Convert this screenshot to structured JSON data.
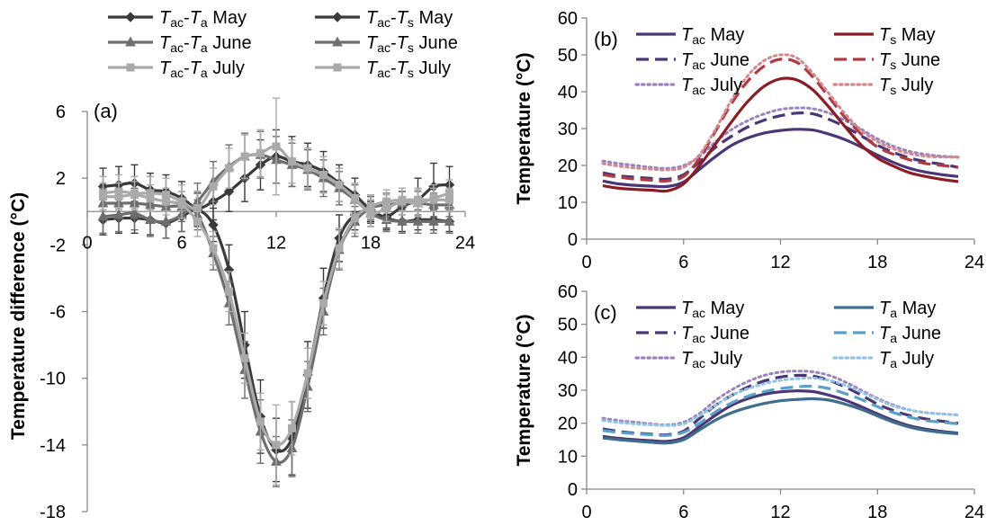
{
  "colors": {
    "may_gray": "#3a3a3a",
    "june_gray": "#6e6e6e",
    "july_gray": "#aaaaaa",
    "tac": "#4b3675",
    "ts": "#8b1c24",
    "ta": "#3f6d8c"
  },
  "chart_data": [
    {
      "id": "a",
      "type": "line",
      "panel_label": "(a)",
      "ylabel": "Temperature difference (°C)",
      "xlabel": "",
      "xlim": [
        0,
        24
      ],
      "ylim": [
        -18,
        6
      ],
      "x_ticks": [
        "0",
        "6",
        "12",
        "18",
        "24"
      ],
      "y_ticks": [
        "-18",
        "-14",
        "-10",
        "-6",
        "-2",
        "2",
        "6"
      ],
      "x": [
        1,
        2,
        3,
        4,
        5,
        6,
        7,
        8,
        9,
        10,
        11,
        12,
        13,
        14,
        15,
        16,
        17,
        18,
        19,
        20,
        21,
        22,
        23
      ],
      "legend": [
        {
          "a": "T",
          "as": "ac",
          "b": "T",
          "bs": "a",
          "month": "May"
        },
        {
          "a": "T",
          "as": "ac",
          "b": "T",
          "bs": "s",
          "month": "May"
        },
        {
          "a": "T",
          "as": "ac",
          "b": "T",
          "bs": "a",
          "month": "June"
        },
        {
          "a": "T",
          "as": "ac",
          "b": "T",
          "bs": "s",
          "month": "June"
        },
        {
          "a": "T",
          "as": "ac",
          "b": "T",
          "bs": "a",
          "month": "July"
        },
        {
          "a": "T",
          "as": "ac",
          "b": "T",
          "bs": "s",
          "month": "July"
        }
      ],
      "series": [
        {
          "name": "Tac-Ta May",
          "marker": "diamond",
          "color": "#3a3a3a",
          "values": [
            1.5,
            1.6,
            1.7,
            1.3,
            1.2,
            0.8,
            0.2,
            0.6,
            1.2,
            2.0,
            2.8,
            3.3,
            3.0,
            2.8,
            2.4,
            1.7,
            1.0,
            0.1,
            -0.3,
            0.3,
            0.7,
            1.5,
            1.6
          ],
          "err": [
            1.1,
            1.1,
            1.1,
            1.0,
            1.0,
            1.0,
            1.0,
            1.1,
            1.2,
            1.4,
            1.5,
            1.6,
            1.5,
            1.3,
            1.2,
            1.1,
            1.0,
            0.8,
            0.8,
            0.9,
            1.3,
            1.4,
            1.1
          ]
        },
        {
          "name": "Tac-Ts May",
          "marker": "diamond",
          "color": "#3a3a3a",
          "values": [
            -0.5,
            -0.4,
            -0.4,
            -0.5,
            -0.7,
            -0.3,
            0.1,
            -0.8,
            -3.5,
            -8.0,
            -12.3,
            -14.3,
            -13.6,
            -9.8,
            -5.2,
            -1.6,
            -0.2,
            0.0,
            -0.4,
            -0.6,
            -0.5,
            -0.5,
            -0.6
          ],
          "err": [
            0.9,
            0.9,
            0.9,
            0.9,
            0.9,
            0.9,
            1.0,
            1.0,
            1.5,
            2.0,
            2.2,
            1.9,
            2.2,
            2.0,
            1.8,
            1.4,
            0.9,
            0.6,
            0.6,
            0.6,
            0.6,
            0.6,
            0.6
          ]
        },
        {
          "name": "Tac-Ta June",
          "marker": "triangle",
          "color": "#6e6e6e",
          "values": [
            -0.3,
            -0.2,
            -0.1,
            -0.5,
            -0.6,
            -0.2,
            0.6,
            1.8,
            2.7,
            3.3,
            3.4,
            3.1,
            2.8,
            2.5,
            2.0,
            1.4,
            0.7,
            -0.1,
            -0.5,
            -0.6,
            -0.6,
            -0.6,
            -0.6
          ],
          "err": [
            1.0,
            1.0,
            1.0,
            1.0,
            1.0,
            1.0,
            1.1,
            1.2,
            1.3,
            1.4,
            1.4,
            1.4,
            1.3,
            1.2,
            1.1,
            1.0,
            0.9,
            0.8,
            0.7,
            0.7,
            0.7,
            0.7,
            0.7
          ]
        },
        {
          "name": "Tac-Ts June",
          "marker": "triangle",
          "color": "#6e6e6e",
          "values": [
            0.5,
            0.5,
            0.5,
            0.4,
            0.3,
            0.3,
            -0.2,
            -2.5,
            -5.5,
            -9.5,
            -13.2,
            -15.0,
            -14.2,
            -10.5,
            -6.0,
            -2.3,
            -0.6,
            0.2,
            0.4,
            0.5,
            0.5,
            0.4,
            0.4
          ],
          "err": [
            0.9,
            0.9,
            0.9,
            0.9,
            0.9,
            0.9,
            0.9,
            1.0,
            1.3,
            1.7,
            1.9,
            1.5,
            1.7,
            1.5,
            1.4,
            1.2,
            0.9,
            0.7,
            0.7,
            0.7,
            0.7,
            0.7,
            0.7
          ]
        },
        {
          "name": "Tac-Ta July",
          "marker": "square",
          "color": "#aaaaaa",
          "values": [
            1.1,
            1.2,
            1.1,
            1.1,
            1.0,
            0.6,
            0.2,
            1.5,
            2.6,
            3.3,
            3.5,
            3.9,
            3.0,
            2.6,
            2.2,
            1.6,
            0.8,
            -0.1,
            0.2,
            0.6,
            0.5,
            0.8,
            1.1
          ],
          "err": [
            1.0,
            1.0,
            1.0,
            1.0,
            1.0,
            1.0,
            1.0,
            1.1,
            1.2,
            1.3,
            1.4,
            2.9,
            1.3,
            1.2,
            1.1,
            1.0,
            0.9,
            0.8,
            0.8,
            0.8,
            0.8,
            0.8,
            0.8
          ]
        },
        {
          "name": "Tac-Ts July",
          "marker": "square",
          "color": "#aaaaaa",
          "values": [
            0.9,
            0.9,
            1.0,
            0.8,
            0.6,
            0.4,
            -0.6,
            -2.2,
            -4.8,
            -8.8,
            -12.6,
            -14.0,
            -13.0,
            -9.7,
            -5.5,
            -2.2,
            -0.4,
            0.3,
            0.6,
            0.7,
            0.7,
            0.7,
            0.7
          ],
          "err": [
            0.8,
            0.8,
            0.8,
            0.8,
            0.8,
            0.8,
            0.9,
            1.0,
            1.2,
            1.5,
            1.7,
            2.4,
            1.6,
            1.5,
            1.3,
            1.2,
            0.9,
            0.7,
            0.7,
            0.7,
            0.7,
            0.7,
            0.7
          ]
        }
      ]
    },
    {
      "id": "b",
      "type": "line",
      "panel_label": "(b)",
      "ylabel": "Temperature (°C)",
      "xlabel": "",
      "xlim": [
        0,
        24
      ],
      "ylim": [
        0,
        60
      ],
      "x_ticks": [
        "0",
        "6",
        "12",
        "18",
        "24"
      ],
      "y_ticks": [
        "0",
        "10",
        "20",
        "30",
        "40",
        "50",
        "60"
      ],
      "x": [
        1,
        2,
        3,
        4,
        5,
        6,
        7,
        8,
        9,
        10,
        11,
        12,
        13,
        14,
        15,
        16,
        17,
        18,
        19,
        20,
        21,
        22,
        23
      ],
      "series": [
        {
          "label_main": "T",
          "label_sub": "ac",
          "label_month": "May",
          "dash": "solid",
          "color": "#4b3675",
          "values": [
            15.8,
            15.0,
            14.6,
            14.4,
            14.3,
            15.5,
            19.0,
            22.5,
            25.5,
            27.5,
            28.8,
            29.5,
            29.8,
            29.6,
            28.5,
            27.0,
            25.0,
            22.8,
            20.8,
            19.2,
            18.2,
            17.5,
            17.0
          ]
        },
        {
          "label_main": "T",
          "label_sub": "ac",
          "label_month": "June",
          "dash": "dash",
          "color": "#4b3675",
          "values": [
            18.0,
            17.2,
            16.8,
            16.5,
            16.3,
            17.5,
            21.0,
            25.0,
            28.0,
            30.5,
            32.3,
            33.5,
            34.2,
            34.0,
            32.5,
            30.5,
            28.0,
            25.5,
            23.5,
            22.0,
            21.0,
            20.3,
            19.5
          ]
        },
        {
          "label_main": "T",
          "label_sub": "ac",
          "label_month": "July",
          "dash": "dot",
          "color": "#9b83bf",
          "values": [
            21.2,
            20.5,
            20.0,
            19.5,
            19.2,
            20.0,
            22.5,
            26.5,
            29.8,
            32.2,
            34.0,
            35.2,
            35.6,
            35.4,
            34.2,
            32.2,
            29.8,
            27.2,
            25.2,
            23.8,
            23.0,
            22.5,
            22.3
          ]
        },
        {
          "label_main": "T",
          "label_sub": "s",
          "label_month": "May",
          "dash": "solid",
          "color": "#8b1c24",
          "values": [
            14.5,
            13.8,
            13.5,
            13.3,
            13.1,
            15.0,
            20.0,
            26.0,
            32.0,
            37.5,
            41.5,
            43.5,
            43.2,
            40.5,
            35.8,
            30.5,
            25.5,
            22.0,
            19.8,
            18.0,
            17.0,
            16.2,
            15.6
          ]
        },
        {
          "label_main": "T",
          "label_sub": "s",
          "label_month": "June",
          "dash": "dash",
          "color": "#b03a42",
          "values": [
            17.5,
            16.8,
            16.3,
            16.0,
            15.8,
            17.0,
            22.0,
            29.5,
            37.0,
            43.0,
            47.0,
            48.8,
            48.0,
            44.0,
            38.5,
            33.0,
            28.5,
            25.0,
            23.0,
            21.5,
            20.5,
            20.0,
            19.5
          ]
        },
        {
          "label_main": "T",
          "label_sub": "s",
          "label_month": "July",
          "dash": "dot",
          "color": "#d08a8f",
          "values": [
            20.5,
            19.8,
            19.3,
            19.0,
            18.8,
            19.5,
            23.0,
            30.0,
            38.0,
            44.5,
            48.5,
            50.0,
            49.2,
            45.0,
            39.5,
            34.0,
            29.5,
            26.5,
            24.5,
            23.2,
            22.5,
            22.3,
            22.2
          ]
        }
      ]
    },
    {
      "id": "c",
      "type": "line",
      "panel_label": "(c)",
      "ylabel": "Temperature (°C)",
      "xlabel": "",
      "xlim": [
        0,
        24
      ],
      "ylim": [
        0,
        60
      ],
      "x_ticks": [
        "0",
        "6",
        "12",
        "18",
        "24"
      ],
      "y_ticks": [
        "0",
        "10",
        "20",
        "30",
        "40",
        "50",
        "60"
      ],
      "x": [
        1,
        2,
        3,
        4,
        5,
        6,
        7,
        8,
        9,
        10,
        11,
        12,
        13,
        14,
        15,
        16,
        17,
        18,
        19,
        20,
        21,
        22,
        23
      ],
      "series": [
        {
          "label_main": "T",
          "label_sub": "ac",
          "label_month": "May",
          "dash": "solid",
          "color": "#4b3675",
          "values": [
            16.0,
            15.4,
            15.0,
            14.7,
            14.5,
            15.6,
            19.0,
            22.5,
            25.5,
            27.5,
            28.8,
            29.5,
            29.8,
            29.6,
            28.5,
            27.0,
            25.0,
            22.8,
            20.8,
            19.2,
            18.2,
            17.5,
            17.0
          ]
        },
        {
          "label_main": "T",
          "label_sub": "ac",
          "label_month": "June",
          "dash": "dash",
          "color": "#4b3675",
          "values": [
            18.3,
            17.5,
            17.0,
            16.7,
            16.5,
            17.6,
            21.5,
            25.5,
            28.5,
            31.0,
            32.8,
            34.0,
            34.5,
            34.3,
            33.0,
            31.0,
            28.5,
            25.8,
            23.8,
            22.3,
            21.3,
            20.6,
            20.0
          ]
        },
        {
          "label_main": "T",
          "label_sub": "ac",
          "label_month": "July",
          "dash": "dot",
          "color": "#9b83bf",
          "values": [
            21.5,
            20.8,
            20.3,
            19.8,
            19.5,
            20.3,
            23.0,
            27.0,
            30.2,
            32.7,
            34.5,
            35.5,
            35.8,
            35.6,
            34.5,
            32.5,
            30.0,
            27.5,
            25.5,
            24.0,
            23.2,
            22.8,
            22.5
          ]
        },
        {
          "label_main": "T",
          "label_sub": "a",
          "label_month": "May",
          "dash": "solid",
          "color": "#3f6d8c",
          "values": [
            15.5,
            15.0,
            14.6,
            14.2,
            14.0,
            15.0,
            18.0,
            21.0,
            23.2,
            24.8,
            26.0,
            26.8,
            27.2,
            27.4,
            27.0,
            25.8,
            24.2,
            22.2,
            20.3,
            18.8,
            17.8,
            17.2,
            16.8
          ]
        },
        {
          "label_main": "T",
          "label_sub": "a",
          "label_month": "June",
          "dash": "dash",
          "color": "#5aa0c8",
          "values": [
            17.8,
            17.2,
            16.8,
            16.5,
            16.3,
            17.2,
            20.0,
            23.5,
            26.2,
            28.2,
            29.6,
            30.5,
            31.0,
            31.2,
            30.5,
            29.0,
            27.2,
            25.0,
            23.2,
            21.8,
            20.8,
            20.3,
            19.8
          ]
        },
        {
          "label_main": "T",
          "label_sub": "a",
          "label_month": "July",
          "dash": "dot",
          "color": "#8ec3e6",
          "values": [
            20.8,
            20.2,
            19.8,
            19.5,
            19.3,
            19.8,
            22.3,
            25.5,
            28.5,
            30.5,
            32.0,
            33.0,
            33.5,
            33.7,
            33.0,
            31.5,
            29.5,
            27.2,
            25.2,
            24.0,
            23.2,
            22.8,
            22.5
          ]
        }
      ]
    }
  ]
}
